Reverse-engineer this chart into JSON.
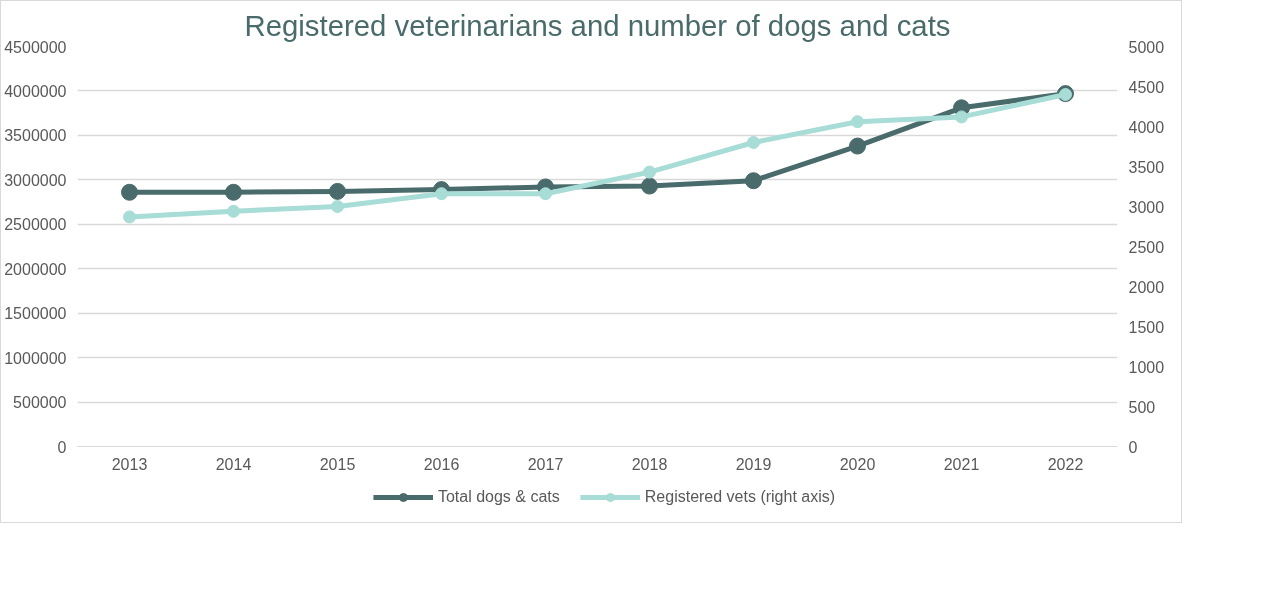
{
  "chart_data": {
    "type": "line",
    "title": "Registered veterinarians and number of dogs and cats",
    "categories": [
      "2013",
      "2014",
      "2015",
      "2016",
      "2017",
      "2018",
      "2019",
      "2020",
      "2021",
      "2022"
    ],
    "series": [
      {
        "name": "Total dogs & cats",
        "color": "#4a6b6b",
        "values": [
          2860000,
          2860000,
          2870000,
          2890000,
          2920000,
          2930000,
          2990000,
          3380000,
          3810000,
          3970000
        ]
      },
      {
        "name": "Registered vets (right axis)",
        "color": "#a8dcd6",
        "axis": "y2",
        "values": [
          2870,
          2940,
          3000,
          3160,
          3160,
          3430,
          3800,
          4060,
          4120,
          4400
        ]
      }
    ],
    "ylim": [
      0,
      4500000
    ],
    "yticks": [
      0,
      500000,
      1000000,
      1500000,
      2000000,
      2500000,
      3000000,
      3500000,
      4000000,
      4500000
    ],
    "y2lim": [
      0,
      5000
    ],
    "y2ticks": [
      0,
      500,
      1000,
      1500,
      2000,
      2500,
      3000,
      3500,
      4000,
      4500,
      5000
    ],
    "grid": "y",
    "legend": "bottom",
    "marker": "circle",
    "line_style": "solid"
  }
}
